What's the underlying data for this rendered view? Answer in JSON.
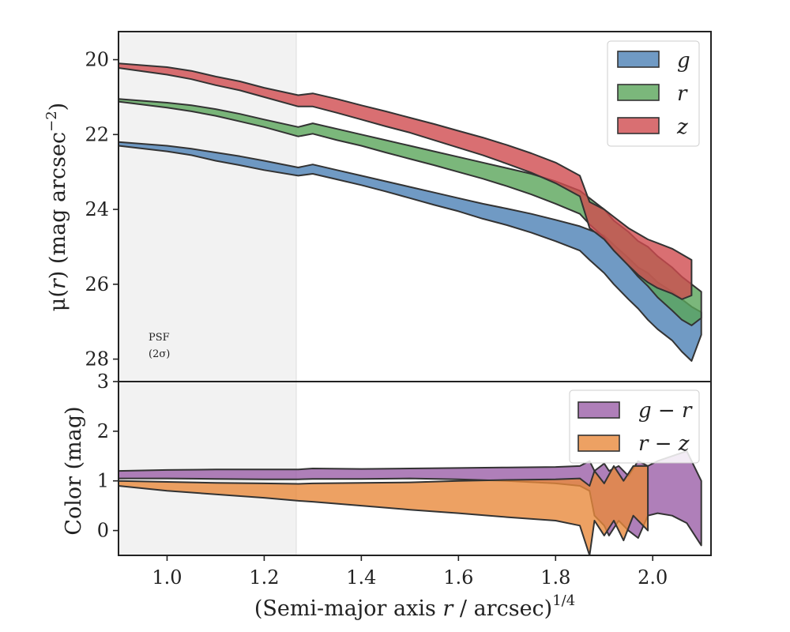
{
  "chart_data": [
    {
      "type": "area",
      "panel": "surface-brightness",
      "title": "",
      "xlabel": "",
      "ylabel": {
        "prefix": "μ(",
        "var": "r",
        "mid": ") (mag arcsec",
        "sup": "−2",
        "suffix": ")"
      },
      "xlim": [
        0.9,
        2.12
      ],
      "ylim": [
        28.6,
        19.25
      ],
      "yinverted": true,
      "yticks": [
        20,
        22,
        24,
        26,
        28
      ],
      "ytick_labels": [
        "20",
        "22",
        "24",
        "26",
        "28"
      ],
      "psf_band": {
        "x": [
          0.9,
          1.27
        ],
        "color": "#f2f2f2"
      },
      "annotation": {
        "line1": "PSF",
        "line2": "(2σ)",
        "at": [
          0.96,
          27.6
        ]
      },
      "legend": {
        "location": "upper right",
        "entries": [
          "g",
          "r",
          "z"
        ]
      },
      "series": [
        {
          "name": "g",
          "color": "#4c81b5",
          "x": [
            0.9,
            1.0,
            1.05,
            1.1,
            1.15,
            1.2,
            1.27,
            1.3,
            1.35,
            1.4,
            1.45,
            1.5,
            1.55,
            1.6,
            1.65,
            1.7,
            1.75,
            1.8,
            1.85,
            1.87,
            1.9,
            1.92,
            1.95,
            1.97,
            1.99,
            2.01,
            2.04,
            2.06,
            2.08,
            2.1
          ],
          "lower": [
            22.2,
            22.3,
            22.38,
            22.48,
            22.58,
            22.7,
            22.88,
            22.8,
            22.95,
            23.1,
            23.25,
            23.4,
            23.55,
            23.7,
            23.85,
            23.98,
            24.12,
            24.28,
            24.45,
            24.55,
            24.7,
            24.95,
            25.3,
            25.55,
            25.7,
            25.95,
            26.2,
            26.4,
            26.6,
            26.75
          ],
          "upper": [
            22.3,
            22.45,
            22.55,
            22.7,
            22.82,
            22.95,
            23.1,
            23.05,
            23.2,
            23.35,
            23.52,
            23.7,
            23.88,
            24.05,
            24.25,
            24.42,
            24.62,
            24.85,
            25.1,
            25.35,
            25.7,
            26.0,
            26.4,
            26.65,
            26.95,
            27.2,
            27.5,
            27.8,
            28.05,
            27.35
          ]
        },
        {
          "name": "r",
          "color": "#5aa55a",
          "x": [
            0.9,
            1.0,
            1.05,
            1.1,
            1.15,
            1.2,
            1.27,
            1.3,
            1.35,
            1.4,
            1.45,
            1.5,
            1.55,
            1.6,
            1.65,
            1.7,
            1.75,
            1.8,
            1.85,
            1.87,
            1.9,
            1.92,
            1.95,
            1.97,
            1.99,
            2.01,
            2.04,
            2.06,
            2.08,
            2.1
          ],
          "lower": [
            21.05,
            21.15,
            21.22,
            21.32,
            21.45,
            21.6,
            21.8,
            21.7,
            21.85,
            22.0,
            22.15,
            22.3,
            22.45,
            22.6,
            22.75,
            22.9,
            23.05,
            23.25,
            23.5,
            23.7,
            24.0,
            24.3,
            24.6,
            24.85,
            25.0,
            25.25,
            25.55,
            25.8,
            26.0,
            26.2
          ],
          "upper": [
            21.12,
            21.28,
            21.38,
            21.5,
            21.65,
            21.8,
            22.05,
            21.98,
            22.15,
            22.3,
            22.48,
            22.65,
            22.82,
            23.0,
            23.18,
            23.38,
            23.6,
            23.85,
            24.12,
            24.4,
            24.75,
            25.1,
            25.5,
            25.8,
            26.05,
            26.35,
            26.7,
            26.95,
            27.1,
            26.9
          ]
        },
        {
          "name": "z",
          "color": "#d04b4f",
          "x": [
            0.9,
            1.0,
            1.05,
            1.1,
            1.15,
            1.2,
            1.27,
            1.3,
            1.35,
            1.4,
            1.45,
            1.5,
            1.55,
            1.6,
            1.65,
            1.7,
            1.75,
            1.8,
            1.85,
            1.87,
            1.9,
            1.92,
            1.95,
            1.97,
            1.99,
            2.01,
            2.04,
            2.06,
            2.08
          ],
          "lower": [
            20.1,
            20.2,
            20.3,
            20.45,
            20.58,
            20.75,
            20.95,
            20.9,
            21.05,
            21.22,
            21.38,
            21.55,
            21.72,
            21.9,
            22.08,
            22.28,
            22.5,
            22.75,
            23.1,
            23.8,
            24.0,
            24.2,
            24.5,
            24.65,
            24.8,
            24.9,
            25.05,
            25.2,
            25.35
          ],
          "upper": [
            20.22,
            20.4,
            20.52,
            20.68,
            20.82,
            21.0,
            21.25,
            21.25,
            21.42,
            21.6,
            21.78,
            21.95,
            22.15,
            22.35,
            22.55,
            22.78,
            23.02,
            23.3,
            23.65,
            24.5,
            24.8,
            25.1,
            25.5,
            25.75,
            25.95,
            26.1,
            26.25,
            26.4,
            26.3
          ]
        }
      ]
    },
    {
      "type": "area",
      "panel": "color-profile",
      "title": "",
      "xlabel": {
        "prefix": "(Semi-major axis ",
        "var": "r",
        "mid": " / arcsec)",
        "sup": "1/4",
        "suffix": ""
      },
      "ylabel": {
        "prefix": "Color (mag)",
        "var": "",
        "mid": "",
        "sup": "",
        "suffix": ""
      },
      "xlim": [
        0.9,
        2.12
      ],
      "ylim": [
        -0.5,
        3.0
      ],
      "yticks": [
        0,
        1,
        2,
        3
      ],
      "ytick_labels": [
        "0",
        "1",
        "2",
        "3"
      ],
      "xticks": [
        1.0,
        1.2,
        1.4,
        1.6,
        1.8,
        2.0
      ],
      "xtick_labels": [
        "1.0",
        "1.2",
        "1.4",
        "1.6",
        "1.8",
        "2.0"
      ],
      "psf_band": {
        "x": [
          0.9,
          1.27
        ],
        "color": "#f2f2f2"
      },
      "legend": {
        "location": "upper right",
        "entries": [
          "g − r",
          "r − z"
        ]
      },
      "series": [
        {
          "name": "g − r",
          "color": "#9b5fa8",
          "x": [
            0.9,
            1.0,
            1.1,
            1.2,
            1.27,
            1.3,
            1.4,
            1.5,
            1.6,
            1.7,
            1.8,
            1.85,
            1.87,
            1.88,
            1.9,
            1.91,
            1.93,
            1.95,
            1.97,
            1.99,
            2.01,
            2.04,
            2.07,
            2.1
          ],
          "lower": [
            1.05,
            1.05,
            1.04,
            1.03,
            1.03,
            1.04,
            1.04,
            1.05,
            1.03,
            1.0,
            0.95,
            0.9,
            0.8,
            0.3,
            0.1,
            -0.1,
            0.2,
            0.0,
            -0.15,
            0.3,
            0.35,
            0.3,
            0.15,
            -0.3
          ],
          "upper": [
            1.2,
            1.22,
            1.23,
            1.23,
            1.23,
            1.25,
            1.24,
            1.25,
            1.26,
            1.27,
            1.28,
            1.3,
            1.4,
            1.2,
            1.35,
            1.2,
            1.3,
            1.1,
            1.4,
            1.3,
            1.4,
            1.5,
            1.6,
            1.0
          ]
        },
        {
          "name": "r − z",
          "color": "#e8893c",
          "x": [
            0.9,
            1.0,
            1.1,
            1.2,
            1.27,
            1.3,
            1.4,
            1.5,
            1.6,
            1.7,
            1.8,
            1.85,
            1.87,
            1.88,
            1.9,
            1.92,
            1.94,
            1.96,
            1.99
          ],
          "lower": [
            0.9,
            0.8,
            0.73,
            0.66,
            0.6,
            0.58,
            0.5,
            0.42,
            0.35,
            0.27,
            0.2,
            0.1,
            -0.5,
            0.2,
            -0.1,
            0.2,
            -0.2,
            0.3,
            0.0
          ],
          "upper": [
            1.0,
            0.98,
            0.96,
            0.95,
            0.94,
            0.95,
            0.96,
            0.97,
            1.0,
            1.02,
            1.03,
            1.05,
            0.9,
            1.2,
            0.95,
            1.3,
            1.0,
            1.3,
            1.3
          ]
        }
      ]
    }
  ]
}
